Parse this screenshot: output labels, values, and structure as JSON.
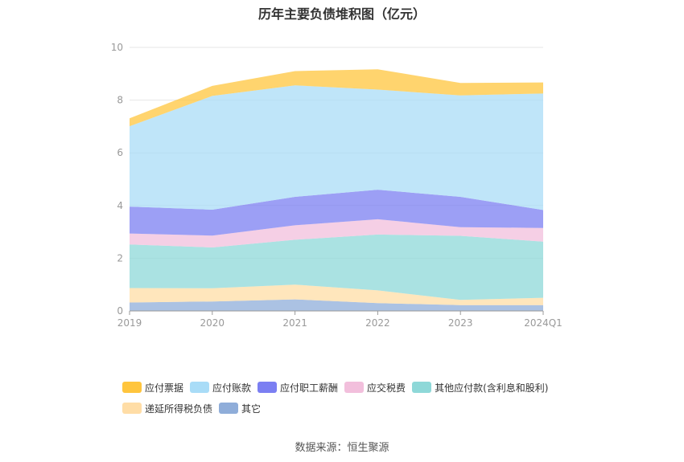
{
  "chart_data": {
    "type": "area",
    "stacked": true,
    "title": "历年主要负债堆积图（亿元）",
    "categories": [
      "2019",
      "2020",
      "2021",
      "2022",
      "2023",
      "2024Q1"
    ],
    "ylim": [
      0,
      10
    ],
    "yticks": [
      "0",
      "2",
      "4",
      "6",
      "8",
      "10"
    ],
    "grid": true,
    "legend_position": "bottom-left",
    "series": [
      {
        "name": "其它",
        "color": "#8fadd9",
        "values": [
          0.32,
          0.36,
          0.44,
          0.3,
          0.22,
          0.22
        ]
      },
      {
        "name": "递延所得税负债",
        "color": "#ffdda6",
        "values": [
          0.55,
          0.5,
          0.56,
          0.48,
          0.2,
          0.28
        ]
      },
      {
        "name": "其他应付款(含利息和股利)",
        "color": "#8ed8d8",
        "values": [
          1.65,
          1.55,
          1.7,
          2.12,
          2.43,
          2.13
        ]
      },
      {
        "name": "应交税费",
        "color": "#f2bfdc",
        "values": [
          0.42,
          0.45,
          0.55,
          0.58,
          0.33,
          0.52
        ]
      },
      {
        "name": "应付职工薪酬",
        "color": "#7b7ff2",
        "values": [
          1.02,
          0.98,
          1.08,
          1.12,
          1.15,
          0.68
        ]
      },
      {
        "name": "应付账款",
        "color": "#a9dcf7",
        "values": [
          3.05,
          4.32,
          4.23,
          3.8,
          3.85,
          4.42
        ]
      },
      {
        "name": "应付票据",
        "color": "#ffc53d",
        "values": [
          0.3,
          0.38,
          0.54,
          0.77,
          0.47,
          0.42
        ]
      }
    ],
    "legend_order": [
      "应付票据",
      "应付账款",
      "应付职工薪酬",
      "应交税费",
      "其他应付款(含利息和股利)",
      "递延所得税负债",
      "其它"
    ]
  },
  "source_text": "数据来源：恒生聚源"
}
